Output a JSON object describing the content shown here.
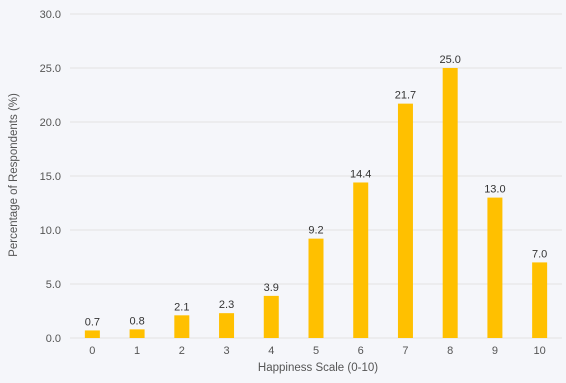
{
  "chart_data": {
    "type": "bar",
    "categories": [
      "0",
      "1",
      "2",
      "3",
      "4",
      "5",
      "6",
      "7",
      "8",
      "9",
      "10"
    ],
    "series": [
      {
        "values": [
          0.7,
          0.8,
          2.1,
          2.3,
          3.9,
          9.2,
          14.4,
          21.7,
          25.0,
          13.0,
          7.0
        ],
        "data_labels": [
          "0.7",
          "0.8",
          "2.1",
          "2.3",
          "3.9",
          "9.2",
          "14.4",
          "21.7",
          "25.0",
          "13.0",
          "7.0"
        ]
      }
    ],
    "xlabel": "Happiness Scale (0-10)",
    "ylabel": "Percentage of Respondents (%)",
    "ylim": [
      0,
      30
    ],
    "yticks": [
      0,
      5,
      10,
      15,
      20,
      25,
      30
    ],
    "ytick_labels": [
      "0.0",
      "5.0",
      "10.0",
      "15.0",
      "20.0",
      "25.0",
      "30.0"
    ],
    "grid": "horizontal",
    "legend": "none",
    "colors": {
      "bar": "#FFC000",
      "grid": "#e2e2e2",
      "background": "#f5f6fa"
    }
  }
}
